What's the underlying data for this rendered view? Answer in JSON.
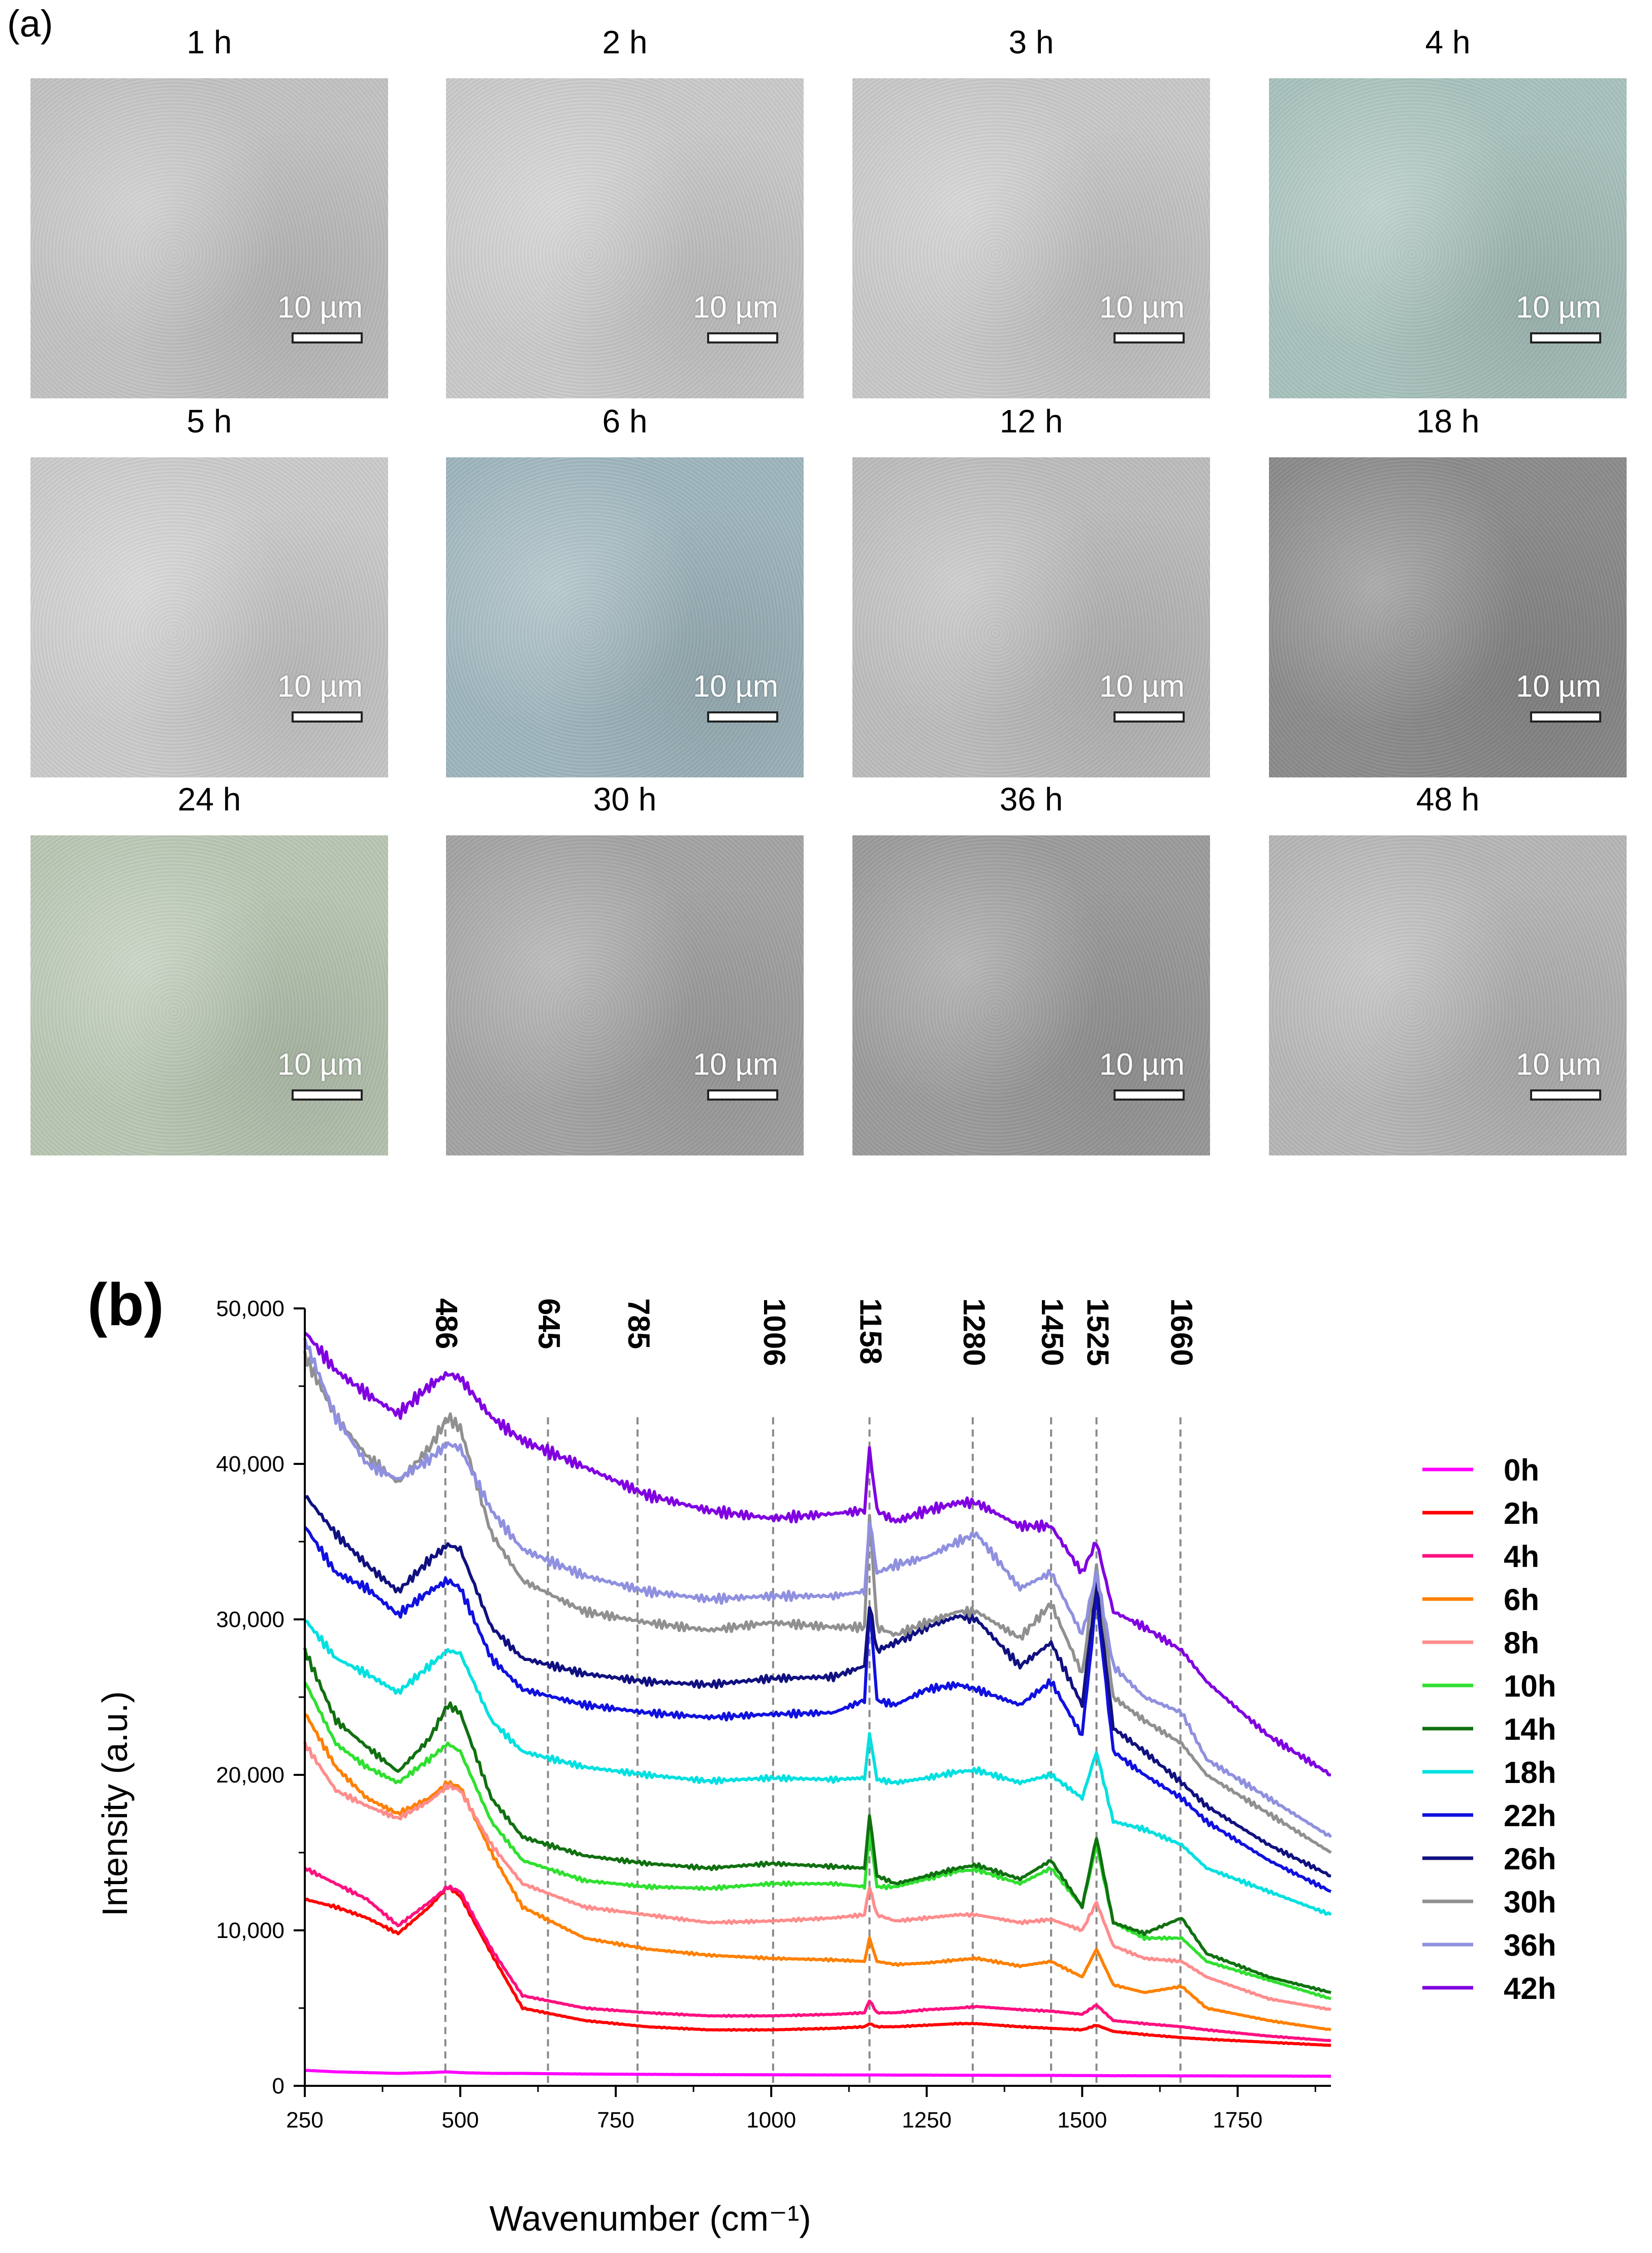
{
  "panel_a": {
    "label": "(a)",
    "scale_bar": "10 µm",
    "tiles": [
      {
        "time": "1 h",
        "tone": "#c2c2c2"
      },
      {
        "time": "2 h",
        "tone": "#cacaca"
      },
      {
        "time": "3 h",
        "tone": "#c8c8c8"
      },
      {
        "time": "4 h",
        "tone": "#a9c2bd"
      },
      {
        "time": "5 h",
        "tone": "#cbcbcb"
      },
      {
        "time": "6 h",
        "tone": "#9fb6bd"
      },
      {
        "time": "12 h",
        "tone": "#bcbcbc"
      },
      {
        "time": "18 h",
        "tone": "#8c8c8c"
      },
      {
        "time": "24 h",
        "tone": "#b9c7b3"
      },
      {
        "time": "30 h",
        "tone": "#a4a4a4"
      },
      {
        "time": "36 h",
        "tone": "#9c9c9c"
      },
      {
        "time": "48 h",
        "tone": "#b6b6b6"
      }
    ]
  },
  "panel_b": {
    "label": "(b)"
  },
  "chart_data": {
    "type": "line",
    "xlabel": "Wavenumber (cm⁻¹)",
    "ylabel": "Intensity (a.u.)",
    "xlim": [
      250,
      1900
    ],
    "ylim": [
      0,
      50000
    ],
    "x_ticks": [
      250,
      500,
      750,
      1000,
      1250,
      1500,
      1750
    ],
    "y_ticks": [
      0,
      10000,
      20000,
      30000,
      40000,
      50000
    ],
    "y_tick_labels": [
      "0",
      "10,000",
      "20,000",
      "30,000",
      "40,000",
      "50,000"
    ],
    "peaks": [
      {
        "label": "486",
        "x": 476
      },
      {
        "label": "645",
        "x": 641
      },
      {
        "label": "785",
        "x": 785
      },
      {
        "label": "1006",
        "x": 1003
      },
      {
        "label": "1158",
        "x": 1158
      },
      {
        "label": "1280",
        "x": 1324
      },
      {
        "label": "1450",
        "x": 1450
      },
      {
        "label": "1525",
        "x": 1523
      },
      {
        "label": "1660",
        "x": 1658
      }
    ],
    "x": [
      250,
      300,
      350,
      400,
      450,
      480,
      500,
      550,
      600,
      700,
      800,
      900,
      1000,
      1100,
      1150,
      1158,
      1170,
      1200,
      1250,
      1300,
      1330,
      1400,
      1450,
      1500,
      1523,
      1550,
      1600,
      1660,
      1700,
      1800,
      1900
    ],
    "series": [
      {
        "name": "0h",
        "color": "#ff00ff",
        "values": [
          1000,
          900,
          850,
          800,
          850,
          900,
          850,
          800,
          800,
          760,
          740,
          720,
          710,
          700,
          700,
          700,
          700,
          690,
          690,
          680,
          680,
          670,
          670,
          660,
          660,
          650,
          650,
          640,
          640,
          630,
          620
        ]
      },
      {
        "name": "2h",
        "color": "#ff0000",
        "values": [
          12000,
          11500,
          10800,
          9800,
          11500,
          12800,
          12200,
          8500,
          5000,
          4200,
          3800,
          3600,
          3600,
          3700,
          3800,
          4000,
          3800,
          3800,
          3900,
          4000,
          4000,
          3800,
          3700,
          3600,
          3900,
          3500,
          3300,
          3100,
          3000,
          2800,
          2600
        ]
      },
      {
        "name": "4h",
        "color": "#ff1080",
        "values": [
          14000,
          13000,
          12000,
          10300,
          11800,
          12800,
          12500,
          8800,
          5800,
          5000,
          4700,
          4500,
          4500,
          4600,
          4700,
          5500,
          4700,
          4700,
          4900,
          5000,
          5100,
          4900,
          4800,
          4600,
          5200,
          4200,
          4000,
          3800,
          3600,
          3200,
          2900
        ]
      },
      {
        "name": "6h",
        "color": "#ff8000",
        "values": [
          24000,
          20500,
          18500,
          17500,
          18500,
          19500,
          19200,
          15000,
          11500,
          9500,
          8800,
          8400,
          8200,
          8100,
          8000,
          9500,
          8000,
          7800,
          7900,
          8100,
          8200,
          7700,
          8000,
          7000,
          8800,
          6500,
          6000,
          6400,
          5000,
          4200,
          3600
        ]
      },
      {
        "name": "8h",
        "color": "#ff8c8c",
        "values": [
          22000,
          19000,
          18000,
          17200,
          18300,
          19300,
          19000,
          15500,
          13000,
          11500,
          11000,
          10500,
          10600,
          10800,
          11000,
          12800,
          11000,
          10600,
          10800,
          11000,
          11000,
          10500,
          10700,
          10000,
          11800,
          9000,
          8200,
          8000,
          7000,
          5600,
          4900
        ]
      },
      {
        "name": "10h",
        "color": "#30e030",
        "values": [
          26000,
          22000,
          20500,
          19500,
          21000,
          22000,
          21500,
          17000,
          14500,
          13200,
          12800,
          12700,
          13000,
          13000,
          12800,
          16500,
          12800,
          12800,
          13300,
          13800,
          13900,
          13000,
          14000,
          11500,
          15500,
          10500,
          9500,
          9500,
          8000,
          6800,
          5600
        ]
      },
      {
        "name": "14h",
        "color": "#107010",
        "values": [
          28000,
          23500,
          21800,
          20200,
          22300,
          24500,
          24000,
          18500,
          16000,
          14800,
          14300,
          14000,
          14300,
          14100,
          14000,
          17500,
          13500,
          13000,
          13500,
          14000,
          14200,
          13300,
          14500,
          11500,
          16000,
          10500,
          9800,
          10800,
          8500,
          7000,
          6000
        ]
      },
      {
        "name": "18h",
        "color": "#00e0e0",
        "values": [
          30000,
          27500,
          26500,
          25300,
          27000,
          28000,
          27800,
          23500,
          21500,
          20500,
          20000,
          19600,
          19800,
          19700,
          19800,
          22700,
          19700,
          19500,
          19800,
          20200,
          20300,
          19500,
          20000,
          18500,
          21500,
          17000,
          16500,
          15500,
          14000,
          12500,
          11000
        ]
      },
      {
        "name": "22h",
        "color": "#1010e0",
        "values": [
          36000,
          33000,
          32000,
          30300,
          31800,
          32500,
          32000,
          27500,
          25500,
          24500,
          24000,
          23700,
          23900,
          24000,
          24800,
          31000,
          24800,
          24500,
          25500,
          25800,
          25500,
          24500,
          26000,
          22500,
          31500,
          21500,
          20000,
          18500,
          17000,
          14500,
          12500
        ]
      },
      {
        "name": "26h",
        "color": "#101080",
        "values": [
          38000,
          35500,
          33500,
          31800,
          33800,
          34800,
          34500,
          29500,
          27500,
          26500,
          26000,
          25800,
          26200,
          26300,
          27000,
          31000,
          28000,
          28500,
          29500,
          30200,
          30000,
          27000,
          28500,
          24500,
          32500,
          23000,
          21500,
          19500,
          18000,
          15500,
          13500
        ]
      },
      {
        "name": "30h",
        "color": "#909090",
        "values": [
          47000,
          43000,
          40500,
          38800,
          41000,
          43000,
          42300,
          35500,
          32500,
          30500,
          29800,
          29300,
          29800,
          29500,
          29500,
          37000,
          29500,
          29000,
          29800,
          30500,
          30500,
          28800,
          31000,
          26500,
          33500,
          25000,
          23500,
          22000,
          20000,
          17500,
          15000
        ]
      },
      {
        "name": "36h",
        "color": "#9090e0",
        "values": [
          48000,
          43000,
          40000,
          39000,
          40300,
          41300,
          41000,
          37000,
          34500,
          32800,
          31800,
          31300,
          31500,
          31500,
          31800,
          36500,
          33000,
          33500,
          34000,
          35000,
          35500,
          32000,
          33000,
          29000,
          33000,
          27000,
          25000,
          24000,
          21000,
          18500,
          16000
        ]
      },
      {
        "name": "42h",
        "color": "#8000e0",
        "values": [
          48500,
          46000,
          44500,
          43200,
          45000,
          45800,
          45500,
          43000,
          41500,
          39800,
          38000,
          37000,
          36500,
          36800,
          37000,
          41000,
          37000,
          36300,
          37000,
          37500,
          37500,
          36000,
          36000,
          33000,
          35000,
          30500,
          29500,
          28000,
          26000,
          22500,
          20000
        ]
      }
    ]
  }
}
